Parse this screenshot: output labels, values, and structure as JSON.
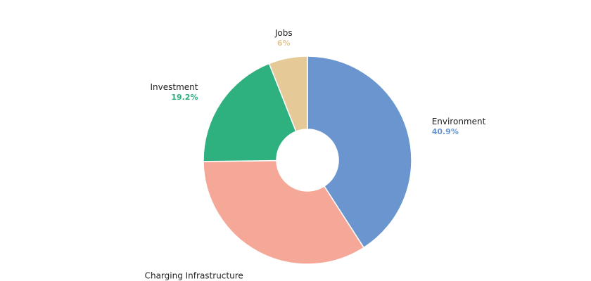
{
  "chart_data": {
    "type": "pie",
    "donut": true,
    "legend": "none",
    "slices": [
      {
        "label": "Environment",
        "value": 40.9,
        "value_label": "40.9%",
        "color": "#6a95cf"
      },
      {
        "label": "Charging Infrastructure",
        "value": 33.9,
        "value_label": "33.9%",
        "color": "#f5a897"
      },
      {
        "label": "Investment",
        "value": 19.2,
        "value_label": "19.2%",
        "color": "#2fb07f"
      },
      {
        "label": "Jobs",
        "value": 6,
        "value_label": "6%",
        "color": "#e5c997"
      }
    ]
  }
}
